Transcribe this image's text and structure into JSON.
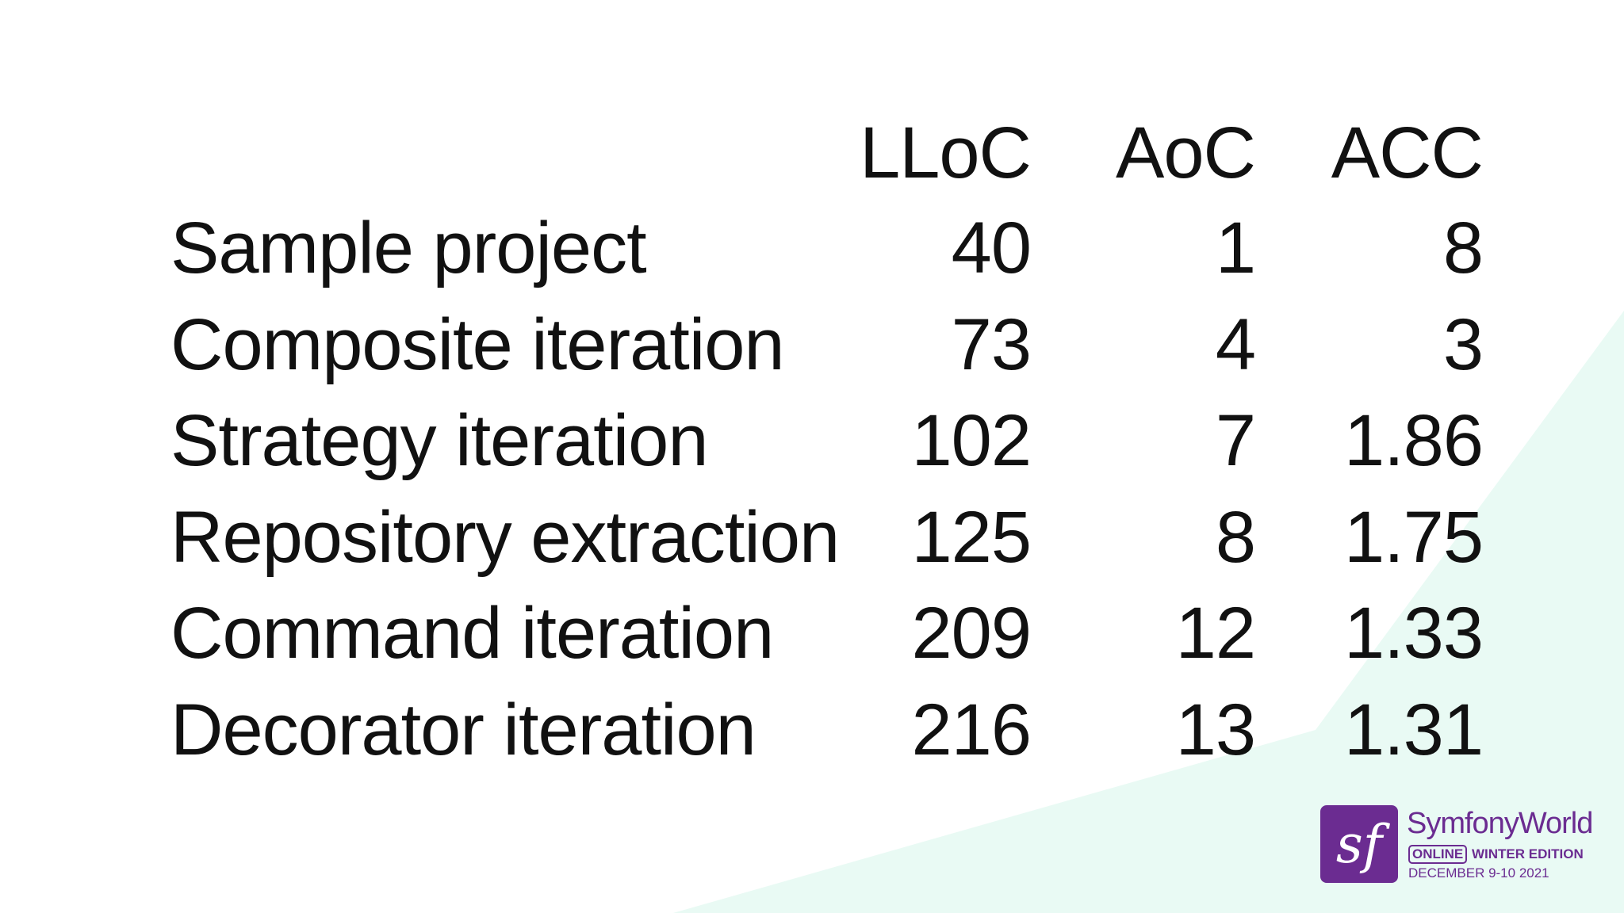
{
  "table": {
    "header": [
      "LLoC",
      "AoC",
      "ACC"
    ],
    "rows": [
      [
        "Sample project",
        40,
        1,
        8
      ],
      [
        "Composite iteration",
        73,
        4,
        3
      ],
      [
        "Strategy iteration",
        102,
        7,
        1.86
      ],
      [
        "Repository extraction",
        125,
        8,
        1.75
      ],
      [
        "Command iteration",
        209,
        12,
        1.33
      ],
      [
        "Decorator iteration",
        216,
        13,
        1.31
      ]
    ]
  },
  "logo": {
    "icon_text": "sf",
    "name": "SymfonyWorld",
    "badge": "ONLINE",
    "edition": "WINTER EDITION",
    "dates": "DECEMBER 9-10 2021"
  }
}
